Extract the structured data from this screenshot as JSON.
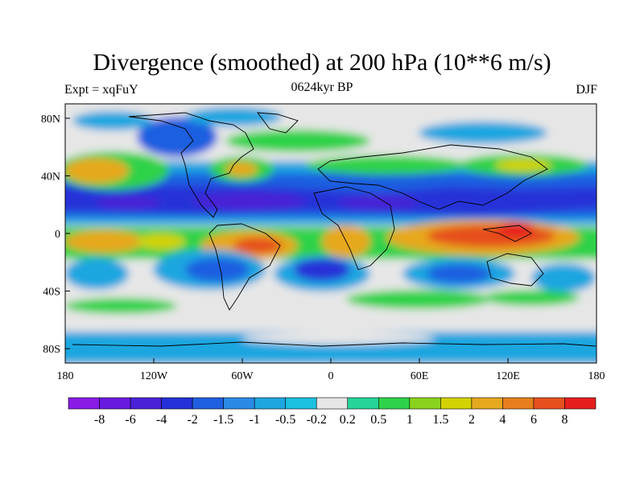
{
  "title": "Divergence (smoothed) at 200 hPa (10**6 m/s)",
  "subtitle_left": "Expt = xqFuY",
  "subtitle_center": "0624kyr BP",
  "subtitle_right": "DJF",
  "map": {
    "lat_ticks": [
      {
        "label": "80N",
        "lat": 80
      },
      {
        "label": "40N",
        "lat": 40
      },
      {
        "label": "0",
        "lat": 0
      },
      {
        "label": "40S",
        "lat": -40
      },
      {
        "label": "80S",
        "lat": -80
      }
    ],
    "lon_ticks": [
      {
        "label": "180",
        "lon": -180
      },
      {
        "label": "120W",
        "lon": -120
      },
      {
        "label": "60W",
        "lon": -60
      },
      {
        "label": "0",
        "lon": 0
      },
      {
        "label": "60E",
        "lon": 60
      },
      {
        "label": "120E",
        "lon": 120
      },
      {
        "label": "180",
        "lon": 180
      }
    ]
  },
  "colorbar": {
    "colors": [
      "#8a1ae6",
      "#6a1ae0",
      "#4a22d6",
      "#2530d8",
      "#1f5fe0",
      "#2a8ae6",
      "#1ea6e0",
      "#1cc0e0",
      "#e6e6e6",
      "#26d49a",
      "#2ed24a",
      "#8ad21e",
      "#d2d200",
      "#e6a81e",
      "#e67e1e",
      "#e6501e",
      "#e61e1e"
    ],
    "labels": [
      "-8",
      "-6",
      "-4",
      "-2",
      "-1.5",
      "-1",
      "-0.5",
      "-0.2",
      "0.2",
      "0.5",
      "1",
      "1.5",
      "2",
      "4",
      "6",
      "8"
    ]
  }
}
